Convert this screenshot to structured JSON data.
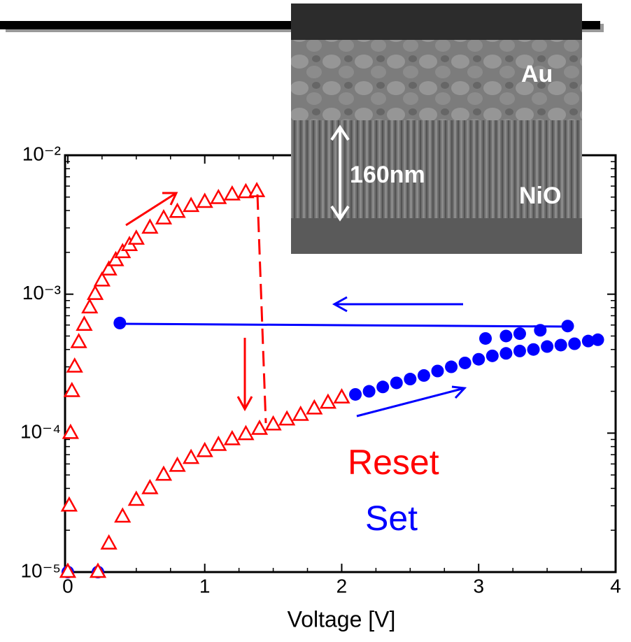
{
  "chart_data": {
    "type": "scatter",
    "xlabel": "Voltage [V]",
    "xlim": [
      -0.02,
      4
    ],
    "xticks": [
      0,
      1,
      2,
      3,
      4
    ],
    "ylim": [
      1e-05,
      0.01
    ],
    "ylog": true,
    "yticks": [
      {
        "value": 1e-05,
        "label": "10⁻⁵"
      },
      {
        "value": 0.0001,
        "label": "10⁻⁴"
      },
      {
        "value": 0.001,
        "label": "10⁻³"
      },
      {
        "value": 0.01,
        "label": "10⁻²"
      }
    ],
    "series": [
      {
        "name": "Set",
        "color": "#0000ff",
        "marker": "circle",
        "x": [
          0.0,
          0.22,
          2.1,
          2.2,
          2.3,
          2.4,
          2.5,
          2.6,
          2.7,
          2.8,
          2.9,
          3.0,
          3.1,
          3.2,
          3.3,
          3.4,
          3.5,
          3.6,
          3.7,
          3.8,
          3.87,
          3.65,
          3.45,
          3.3,
          3.2,
          3.05,
          0.38
        ],
        "values": [
          1e-05,
          1e-05,
          0.00019,
          0.0002,
          0.000215,
          0.00023,
          0.000245,
          0.00026,
          0.00028,
          0.0003,
          0.00032,
          0.00034,
          0.00036,
          0.000375,
          0.00039,
          0.0004,
          0.00042,
          0.00043,
          0.00044,
          0.00046,
          0.00047,
          0.00059,
          0.00055,
          0.00052,
          0.0005,
          0.00048,
          0.00062
        ]
      },
      {
        "name": "Reset",
        "color": "#ff0000",
        "marker": "triangle",
        "x": [
          0.0,
          0.01,
          0.02,
          0.03,
          0.05,
          0.08,
          0.12,
          0.16,
          0.2,
          0.25,
          0.3,
          0.35,
          0.4,
          0.45,
          0.5,
          0.6,
          0.7,
          0.8,
          0.9,
          1.0,
          1.1,
          1.2,
          1.3,
          1.38,
          0.22,
          0.3,
          0.4,
          0.5,
          0.6,
          0.7,
          0.8,
          0.9,
          1.0,
          1.1,
          1.2,
          1.3,
          1.4,
          1.5,
          1.6,
          1.7,
          1.8,
          1.9,
          2.0
        ],
        "values": [
          1e-05,
          3e-05,
          0.0001,
          0.0002,
          0.0003,
          0.00045,
          0.0006,
          0.0008,
          0.001,
          0.00125,
          0.0015,
          0.00175,
          0.002,
          0.00225,
          0.0025,
          0.003,
          0.0035,
          0.0039,
          0.0043,
          0.0046,
          0.0049,
          0.0052,
          0.0054,
          0.0055,
          1e-05,
          1.6e-05,
          2.5e-05,
          3.3e-05,
          4e-05,
          5e-05,
          5.8e-05,
          6.6e-05,
          7.4e-05,
          8.2e-05,
          9e-05,
          9.8e-05,
          0.000107,
          0.000115,
          0.000125,
          0.000135,
          0.00015,
          0.000165,
          0.00018
        ]
      }
    ],
    "inset": {
      "labels": [
        "Au",
        "NiO",
        "160nm"
      ]
    }
  }
}
